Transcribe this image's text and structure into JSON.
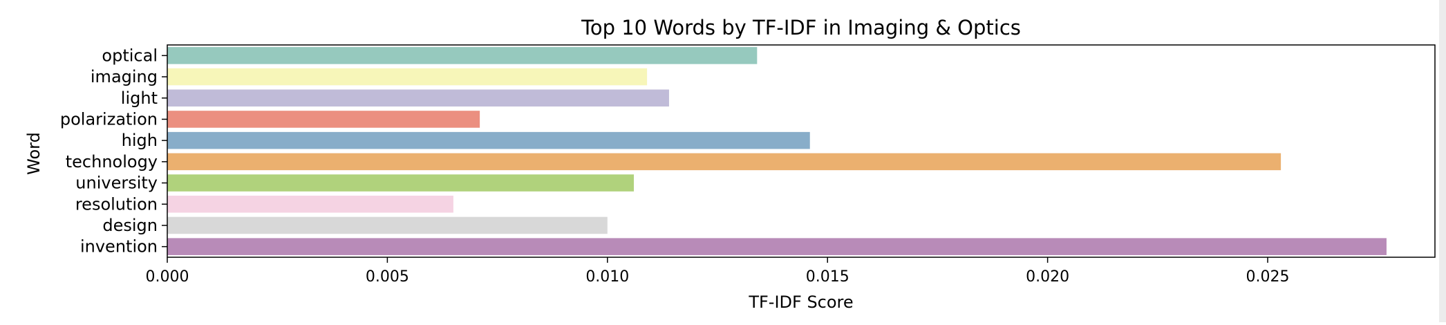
{
  "chart_data": {
    "type": "bar",
    "orientation": "horizontal",
    "title": "Top 10 Words by TF-IDF in Imaging & Optics",
    "xlabel": "TF-IDF Score",
    "ylabel": "Word",
    "xlim": [
      0,
      0.0288
    ],
    "xticks": [
      "0.000",
      "0.005",
      "0.010",
      "0.015",
      "0.020",
      "0.025"
    ],
    "xtick_values": [
      0,
      0.005,
      0.01,
      0.015,
      0.02,
      0.025
    ],
    "grid": false,
    "categories": [
      "optical",
      "imaging",
      "light",
      "polarization",
      "high",
      "technology",
      "university",
      "resolution",
      "design",
      "invention"
    ],
    "values": [
      0.0134,
      0.0109,
      0.0114,
      0.0071,
      0.0146,
      0.0253,
      0.0106,
      0.0065,
      0.01,
      0.0277
    ],
    "colors": [
      "#96c9be",
      "#f7f6b9",
      "#c0bbd8",
      "#eb8f80",
      "#88adc9",
      "#ebb06f",
      "#b0d27c",
      "#f5d3e3",
      "#d8d8d8",
      "#b88bb8"
    ]
  }
}
